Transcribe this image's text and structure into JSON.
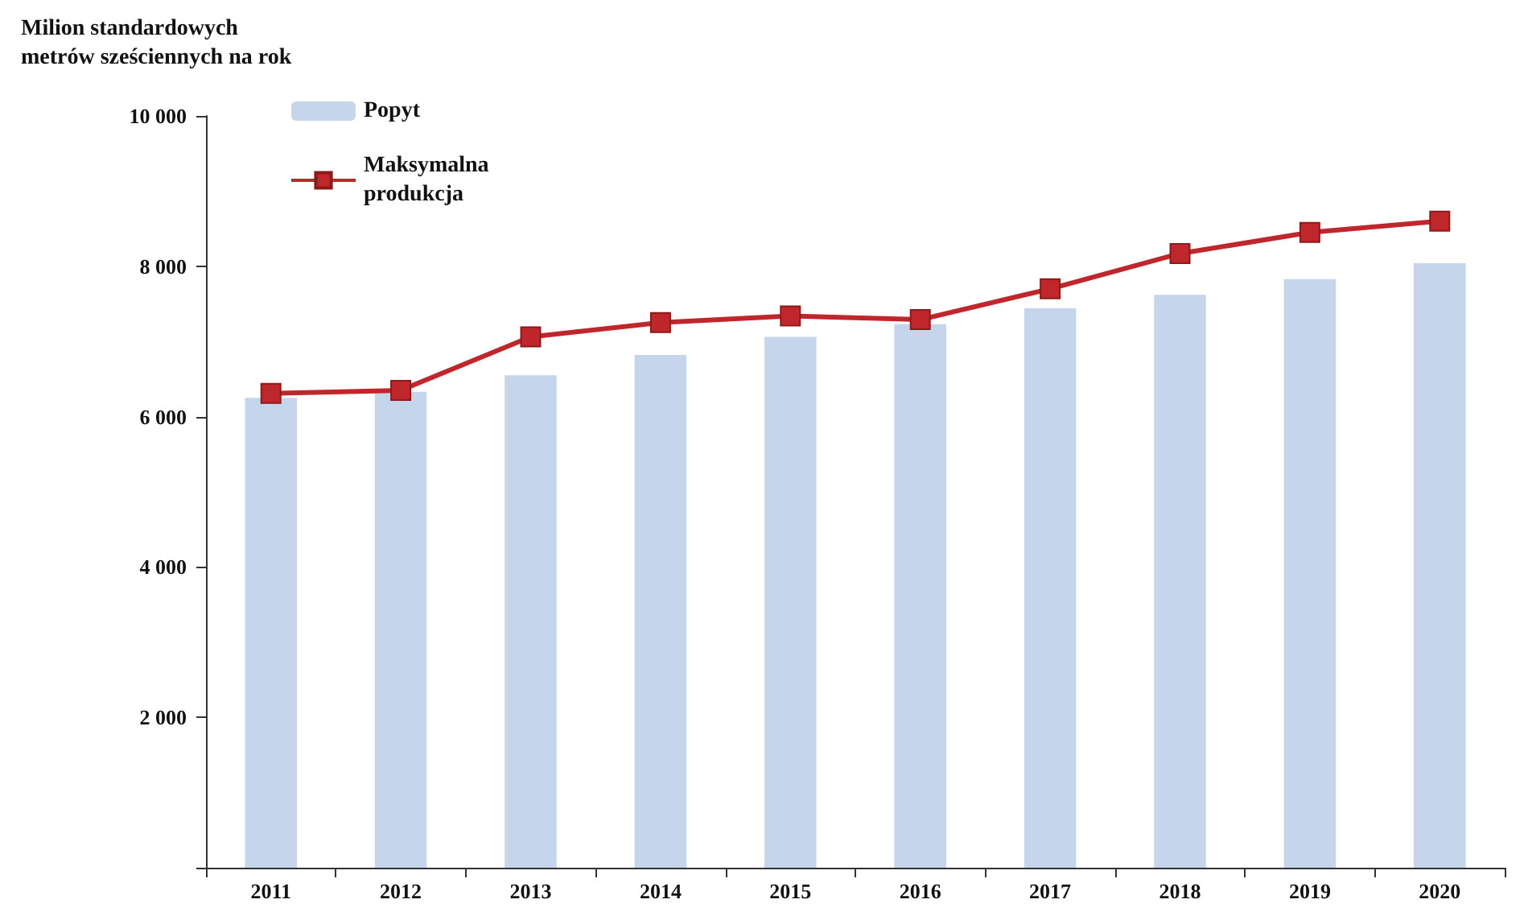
{
  "chart_data": {
    "type": "bar",
    "ylabel": "Milion standardowych\nmetrów sześciennych na rok",
    "categories": [
      "2011",
      "2012",
      "2013",
      "2014",
      "2015",
      "2016",
      "2017",
      "2018",
      "2019",
      "2020"
    ],
    "series": [
      {
        "name": "Popyt",
        "color": "#c5d6ec",
        "values": [
          6250,
          6330,
          6550,
          6820,
          7060,
          7230,
          7440,
          7620,
          7830,
          8040
        ]
      },
      {
        "name": "Maksymalna\nprodukcja",
        "type": "line",
        "color": "#c0272d",
        "marker": "square",
        "values": [
          6310,
          6350,
          7060,
          7250,
          7340,
          7290,
          7700,
          8170,
          8450,
          8600
        ]
      }
    ],
    "ylim": [
      0,
      10000
    ],
    "yticks": [
      {
        "value": 0,
        "label": null
      },
      {
        "value": 2000,
        "label": "2 000"
      },
      {
        "value": 4000,
        "label": "4 000"
      },
      {
        "value": 6000,
        "label": "6 000"
      },
      {
        "value": 8000,
        "label": "8 000"
      },
      {
        "value": 10000,
        "label": "10 000"
      }
    ],
    "grid": false,
    "legend": "top left"
  }
}
